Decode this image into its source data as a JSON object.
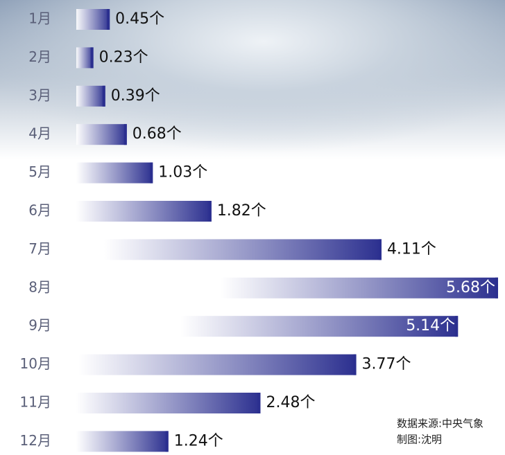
{
  "chart_data": {
    "type": "bar",
    "orientation": "horizontal",
    "categories": [
      "1月",
      "2月",
      "3月",
      "4月",
      "5月",
      "6月",
      "7月",
      "8月",
      "9月",
      "10月",
      "11月",
      "12月"
    ],
    "values": [
      0.45,
      0.23,
      0.39,
      0.68,
      1.03,
      1.82,
      4.11,
      5.68,
      5.14,
      3.77,
      2.48,
      1.24
    ],
    "value_labels": [
      "0.45个",
      "0.23个",
      "0.39个",
      "0.68个",
      "1.03个",
      "1.82个",
      "4.11个",
      "5.68个",
      "5.14个",
      "3.77个",
      "2.48个",
      "1.24个"
    ],
    "color": "#2b2f8f",
    "source": "数据来源:中央气象",
    "credit": "制图:沈明"
  }
}
